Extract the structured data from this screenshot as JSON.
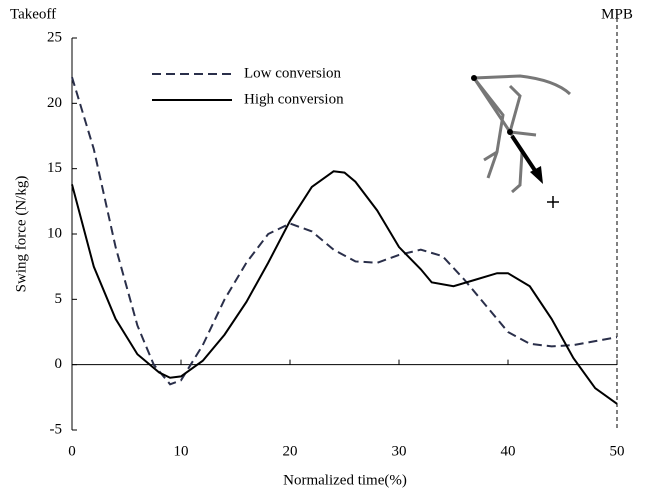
{
  "chart_data": {
    "type": "line",
    "y_label": "Swing force (N/kg)",
    "x_label": "Normalized time(%)",
    "annotations": [
      "Takeoff",
      "MPB"
    ],
    "xlim": [
      0,
      50
    ],
    "xticks": [
      0,
      10,
      20,
      30,
      40,
      50
    ],
    "ylim": [
      -5,
      25
    ],
    "yticks": [
      -5,
      0,
      5,
      10,
      15,
      20,
      25
    ],
    "series": [
      {
        "name": "Low conversion",
        "color": "#2a2f4a",
        "dash": true,
        "x": [
          0,
          2,
          4,
          6,
          7.5,
          9,
          10,
          12,
          14,
          16,
          18,
          20,
          22,
          24,
          26,
          28,
          30,
          32,
          34,
          36,
          38,
          40,
          42,
          44,
          46,
          48,
          50
        ],
        "values": [
          22,
          16.5,
          9,
          3,
          0,
          -1.5,
          -1.2,
          1.5,
          5,
          7.8,
          10,
          10.8,
          10.2,
          8.8,
          7.9,
          7.8,
          8.4,
          8.8,
          8.3,
          6.5,
          4.5,
          2.5,
          1.6,
          1.4,
          1.5,
          1.8,
          2.1
        ]
      },
      {
        "name": "High conversion",
        "color": "#000000",
        "dash": false,
        "x": [
          0,
          2,
          4,
          6,
          8,
          9,
          10,
          12,
          14,
          16,
          18,
          20,
          22,
          24,
          25,
          26,
          28,
          30,
          32,
          33,
          35,
          37,
          39,
          40,
          42,
          44,
          46,
          48,
          50
        ],
        "values": [
          13.8,
          7.5,
          3.5,
          0.8,
          -0.6,
          -1,
          -0.9,
          0.3,
          2.3,
          4.8,
          7.8,
          11,
          13.6,
          14.8,
          14.7,
          14,
          11.8,
          9,
          7.3,
          6.3,
          6,
          6.5,
          7,
          7,
          6,
          3.5,
          0.5,
          -1.8,
          -3
        ]
      }
    ]
  }
}
